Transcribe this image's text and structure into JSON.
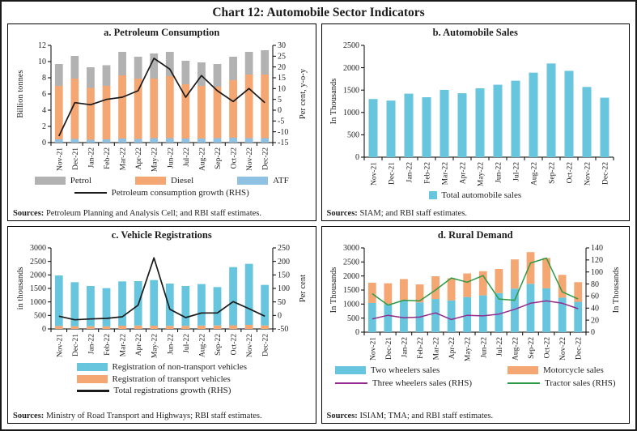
{
  "title": "Chart 12: Automobile Sector Indicators",
  "months": [
    "Nov-21",
    "Dec-21",
    "Jan-22",
    "Feb-22",
    "Mar-22",
    "Apr-22",
    "May-22",
    "Jun-22",
    "Jul-22",
    "Aug-22",
    "Sep-22",
    "Oct-22",
    "Nov-22",
    "Dec-22"
  ],
  "chart_data": [
    {
      "panel": "a",
      "type": "bar",
      "title": "a. Petroleum Consumption",
      "categories": [
        "Nov-21",
        "Dec-21",
        "Jan-22",
        "Feb-22",
        "Mar-22",
        "Apr-22",
        "May-22",
        "Jun-22",
        "Jul-22",
        "Aug-22",
        "Sep-22",
        "Oct-22",
        "Nov-22",
        "Dec-22"
      ],
      "left_axis": {
        "label": "Billion tonnes",
        "min": 0,
        "max": 12,
        "step": 2
      },
      "right_axis": {
        "label": "Per cent, y-o-y",
        "min": -15,
        "max": 30,
        "step": 5
      },
      "series": [
        {
          "name": "ATF",
          "type": "bar",
          "stack": true,
          "axis": "left",
          "color": "#8fc1e3",
          "values": [
            0.4,
            0.45,
            0.35,
            0.4,
            0.5,
            0.45,
            0.55,
            0.55,
            0.5,
            0.5,
            0.55,
            0.6,
            0.55,
            0.55
          ]
        },
        {
          "name": "Diesel",
          "type": "bar",
          "stack": true,
          "axis": "left",
          "color": "#f4a673",
          "values": [
            6.6,
            7.45,
            6.4,
            6.6,
            7.8,
            7.45,
            7.35,
            7.65,
            6.7,
            6.5,
            6.35,
            7.1,
            7.85,
            7.85
          ]
        },
        {
          "name": "Petrol",
          "type": "bar",
          "stack": true,
          "axis": "left",
          "color": "#b2b2b2",
          "values": [
            2.7,
            2.8,
            2.55,
            2.55,
            2.9,
            2.7,
            3.1,
            3.0,
            2.9,
            2.9,
            2.8,
            2.9,
            2.8,
            3.0
          ]
        },
        {
          "name": "Petroleum consumption growth (RHS)",
          "type": "line",
          "axis": "right",
          "color": "#1a1a1a",
          "values": [
            -12,
            3.5,
            2.5,
            5,
            6,
            9,
            24,
            19,
            6,
            16,
            9,
            4,
            10,
            3.5
          ]
        }
      ],
      "sources_label": "Sources:",
      "sources_text": " Petroleum Planning and Analysis Cell; and RBI staff estimates."
    },
    {
      "panel": "b",
      "type": "bar",
      "title": "b. Automobile Sales",
      "categories": [
        "Nov-21",
        "Dec-21",
        "Jan-22",
        "Feb-22",
        "Mar-22",
        "Apr-22",
        "May-22",
        "Jun-22",
        "Jul-22",
        "Aug-22",
        "Sep-22",
        "Oct-22",
        "Nov-22",
        "Dec-22"
      ],
      "left_axis": {
        "label": "In Thousands",
        "min": 0,
        "max": 2500,
        "step": 500
      },
      "series": [
        {
          "name": "Total automobile sales",
          "type": "bar",
          "stack": true,
          "axis": "left",
          "color": "#67c6dd",
          "values": [
            1300,
            1265,
            1420,
            1340,
            1505,
            1430,
            1540,
            1620,
            1710,
            1890,
            2095,
            1930,
            1570,
            1330
          ]
        }
      ],
      "sources_label": "Sources:",
      "sources_text": " SIAM; and RBI staff estimates."
    },
    {
      "panel": "c",
      "type": "bar",
      "title": "c. Vehicle Registrations",
      "categories": [
        "Nov-21",
        "Dec-21",
        "Jan-22",
        "Feb-22",
        "Mar-22",
        "Apr-22",
        "May-22",
        "Jun-22",
        "Jul-22",
        "Aug-22",
        "Sep-22",
        "Oct-22",
        "Nov-22",
        "Dec-22"
      ],
      "left_axis": {
        "label": "in thousands",
        "min": 0,
        "max": 3000,
        "step": 500
      },
      "right_axis": {
        "label": "Per cent",
        "min": -50,
        "max": 250,
        "step": 50
      },
      "series": [
        {
          "name": "Registration of transport vehicles",
          "type": "bar",
          "stack": true,
          "axis": "left",
          "color": "#f4a673",
          "values": [
            110,
            100,
            100,
            95,
            120,
            125,
            120,
            115,
            115,
            125,
            130,
            135,
            150,
            130
          ]
        },
        {
          "name": "Registration of non-transport vehicles",
          "type": "bar",
          "stack": true,
          "axis": "left",
          "color": "#67c6dd",
          "values": [
            1870,
            1630,
            1490,
            1415,
            1640,
            1645,
            1690,
            1565,
            1475,
            1535,
            1420,
            2155,
            2260,
            1500
          ]
        },
        {
          "name": "Total registrations growth (RHS)",
          "type": "line",
          "axis": "right",
          "color": "#1a1a1a",
          "values": [
            -3,
            -16,
            -13,
            -11,
            -5,
            38,
            213,
            23,
            -8,
            9,
            9,
            51,
            25,
            -3
          ]
        }
      ],
      "sources_label": "Sources:",
      "sources_text": " Ministry of Road Transport and Highways; RBI staff estimates."
    },
    {
      "panel": "d",
      "type": "bar",
      "title": "d. Rural Demand",
      "categories": [
        "Nov-21",
        "Dec-21",
        "Jan-22",
        "Feb-22",
        "Mar-22",
        "Apr-22",
        "May-22",
        "Jun-22",
        "Jul-22",
        "Aug-22",
        "Sep-22",
        "Oct-22",
        "Nov-22",
        "Dec-22"
      ],
      "left_axis": {
        "label": "In Thousands",
        "min": 0,
        "max": 3000,
        "step": 500
      },
      "right_axis": {
        "label": "In Thousands",
        "min": 0,
        "max": 140,
        "step": 20
      },
      "series": [
        {
          "name": "Two wheelers sales",
          "type": "bar",
          "stack": true,
          "axis": "left",
          "color": "#67c6dd",
          "values": [
            1040,
            1000,
            1130,
            1060,
            1180,
            1130,
            1250,
            1310,
            1390,
            1550,
            1720,
            1560,
            1230,
            1080
          ]
        },
        {
          "name": "Motorcycle sales",
          "type": "bar",
          "stack": true,
          "axis": "left",
          "color": "#f4a673",
          "values": [
            720,
            740,
            760,
            640,
            810,
            790,
            840,
            860,
            860,
            1040,
            1130,
            1080,
            810,
            700
          ]
        },
        {
          "name": "Three wheelers sales (RHS)",
          "type": "line",
          "axis": "right",
          "color": "#942a8e",
          "values": [
            22,
            28,
            24,
            25,
            32,
            21,
            28,
            27,
            30,
            38,
            48,
            52,
            48,
            39
          ]
        },
        {
          "name": "Tractor sales (RHS)",
          "type": "line",
          "axis": "right",
          "color": "#2e9b44",
          "values": [
            64,
            45,
            53,
            52,
            70,
            90,
            83,
            94,
            55,
            53,
            115,
            123,
            67,
            55
          ]
        }
      ],
      "sources_label": "Sources:",
      "sources_text": " ISIAM; TMA; and RBI staff estimates."
    }
  ]
}
